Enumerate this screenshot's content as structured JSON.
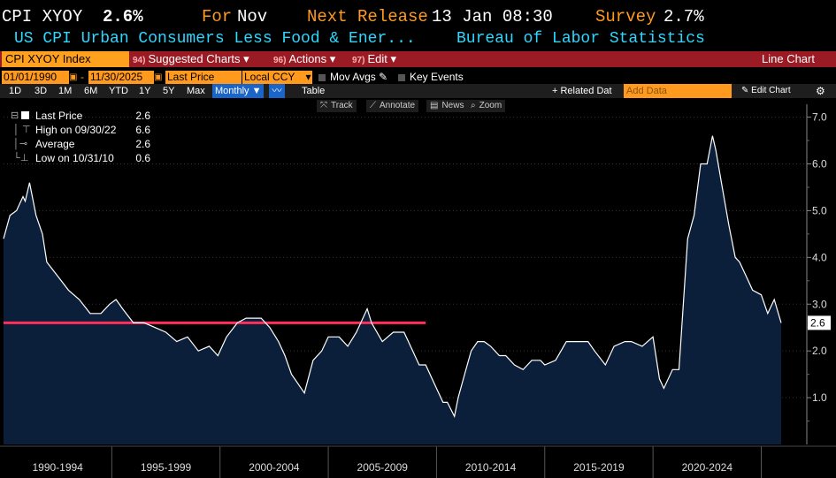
{
  "header": {
    "ticker": "CPI XYOY",
    "last_value": "2.6%",
    "period_label": "For",
    "period_value": "Nov",
    "next_release_label": "Next Release",
    "next_release_value": "13 Jan 08:30",
    "survey_label": "Survey",
    "survey_value": "2.7%",
    "description": "US CPI Urban Consumers Less Food & Ener...",
    "source": "Bureau of Labor Statistics"
  },
  "menubar": {
    "security": "CPI XYOY Index",
    "suggested": {
      "num": "94)",
      "label": "Suggested Charts"
    },
    "actions": {
      "num": "96)",
      "label": "Actions"
    },
    "edit": {
      "num": "97)",
      "label": "Edit"
    },
    "chart_type": "Line Chart"
  },
  "controls": {
    "start_date": "01/01/1990",
    "end_date": "11/30/2025",
    "field": "Last Price",
    "currency": "Local CCY",
    "mov_avgs": "Mov Avgs",
    "key_events": "Key Events"
  },
  "periods": [
    "1D",
    "3D",
    "1M",
    "6M",
    "YTD",
    "1Y",
    "5Y",
    "Max"
  ],
  "frequency": "Monthly",
  "table_label": "Table",
  "related_label": "+ Related Dat",
  "add_data_placeholder": "Add Data",
  "edit_chart_label": "Edit Chart",
  "tools": {
    "track": "Track",
    "annotate": "Annotate",
    "news": "News",
    "zoom": "Zoom"
  },
  "legend": [
    {
      "icon": "square",
      "label": "Last Price",
      "value": "2.6"
    },
    {
      "icon": "high",
      "label": "High on 09/30/22",
      "value": "6.6"
    },
    {
      "icon": "average",
      "label": "Average",
      "value": "2.6"
    },
    {
      "icon": "low",
      "label": "Low on 10/31/10",
      "value": "0.6"
    }
  ],
  "colors": {
    "area_fill": "#0b1f3a",
    "line": "#ffffff",
    "average_line": "#ff2f5a",
    "orange": "#ff9a1f",
    "cyan": "#2fd7ff",
    "menu_red": "#9b1b24"
  },
  "chart_data": {
    "type": "area",
    "ylim": [
      0,
      7.2
    ],
    "yticks": [
      "1.0",
      "2.0",
      "3.0",
      "4.0",
      "5.0",
      "6.0",
      "7.0"
    ],
    "xlim": [
      1990.0,
      2025.92
    ],
    "x_labels": [
      "1990-1994",
      "1995-1999",
      "2000-2004",
      "2005-2009",
      "2010-2014",
      "2015-2019",
      "2020-2024"
    ],
    "last_label": "2.6",
    "average": 2.6,
    "average_end": 2009.5,
    "series": [
      {
        "name": "CPI XYOY",
        "x": [
          1990.0,
          1990.3,
          1990.6,
          1990.9,
          1991.0,
          1991.2,
          1991.5,
          1991.8,
          1992.0,
          1992.5,
          1993.0,
          1993.5,
          1994.0,
          1994.5,
          1994.9,
          1995.2,
          1995.5,
          1996.0,
          1996.5,
          1997.0,
          1997.5,
          1998.0,
          1998.5,
          1999.0,
          1999.5,
          1999.9,
          2000.3,
          2000.8,
          2001.2,
          2001.6,
          2001.9,
          2002.3,
          2002.7,
          2003.0,
          2003.3,
          2003.6,
          2003.9,
          2004.3,
          2004.7,
          2005.0,
          2005.5,
          2005.9,
          2006.3,
          2006.8,
          2007.0,
          2007.5,
          2008.0,
          2008.5,
          2008.8,
          2009.2,
          2009.5,
          2009.8,
          2010.0,
          2010.3,
          2010.5,
          2010.83,
          2011.0,
          2011.3,
          2011.6,
          2011.9,
          2012.2,
          2012.5,
          2012.9,
          2013.2,
          2013.6,
          2014.0,
          2014.4,
          2014.8,
          2015.0,
          2015.5,
          2016.0,
          2016.5,
          2017.0,
          2017.3,
          2017.8,
          2018.2,
          2018.7,
          2019.0,
          2019.5,
          2020.0,
          2020.3,
          2020.5,
          2020.9,
          2021.2,
          2021.4,
          2021.6,
          2021.9,
          2022.2,
          2022.5,
          2022.75,
          2022.9,
          2023.2,
          2023.5,
          2023.8,
          2024.0,
          2024.3,
          2024.6,
          2025.0,
          2025.3,
          2025.6,
          2025.92
        ],
        "y": [
          4.4,
          4.9,
          5.0,
          5.3,
          5.2,
          5.6,
          4.9,
          4.5,
          3.9,
          3.6,
          3.3,
          3.1,
          2.8,
          2.8,
          3.0,
          3.1,
          2.9,
          2.6,
          2.6,
          2.5,
          2.4,
          2.2,
          2.3,
          2.0,
          2.1,
          1.9,
          2.3,
          2.6,
          2.7,
          2.7,
          2.7,
          2.5,
          2.2,
          1.9,
          1.5,
          1.3,
          1.1,
          1.8,
          2.0,
          2.3,
          2.3,
          2.1,
          2.4,
          2.9,
          2.6,
          2.2,
          2.4,
          2.4,
          2.1,
          1.7,
          1.7,
          1.4,
          1.2,
          0.9,
          0.9,
          0.6,
          1.0,
          1.5,
          2.0,
          2.2,
          2.2,
          2.1,
          1.9,
          1.9,
          1.7,
          1.6,
          1.8,
          1.8,
          1.7,
          1.8,
          2.2,
          2.2,
          2.2,
          2.0,
          1.7,
          2.1,
          2.2,
          2.2,
          2.1,
          2.3,
          1.4,
          1.2,
          1.6,
          1.6,
          3.0,
          4.4,
          4.9,
          6.0,
          6.0,
          6.6,
          6.3,
          5.5,
          4.7,
          4.0,
          3.9,
          3.6,
          3.3,
          3.2,
          2.8,
          3.1,
          2.6
        ]
      }
    ]
  }
}
